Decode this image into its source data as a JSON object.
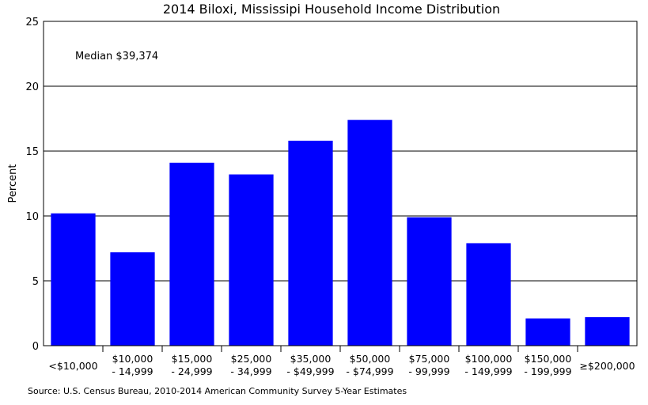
{
  "chart_data": {
    "type": "bar",
    "title": "2014 Biloxi, Mississipi Household Income Distribution",
    "ylabel": "Percent",
    "xlabel": "",
    "ylim": [
      0,
      25
    ],
    "yticks": [
      0,
      5,
      10,
      15,
      20,
      25
    ],
    "grid": true,
    "bar_color": "#0000ff",
    "categories": [
      [
        "<$10,000"
      ],
      [
        "$10,000",
        "- 14,999"
      ],
      [
        "$15,000",
        "- 24,999"
      ],
      [
        "$25,000",
        "- 34,999"
      ],
      [
        "$35,000",
        "- $49,999"
      ],
      [
        "$50,000",
        "- $74,999"
      ],
      [
        "$75,000",
        "- 99,999"
      ],
      [
        "$100,000",
        "- 149,999"
      ],
      [
        "$150,000",
        "- 199,999"
      ],
      [
        "≥$200,000"
      ]
    ],
    "values": [
      10.2,
      7.2,
      14.1,
      13.2,
      15.8,
      17.4,
      9.9,
      7.9,
      2.1,
      2.2
    ],
    "annotation": "Median $39,374",
    "source": "Source: U.S. Census Bureau, 2010-2014 American Community Survey 5-Year Estimates"
  }
}
